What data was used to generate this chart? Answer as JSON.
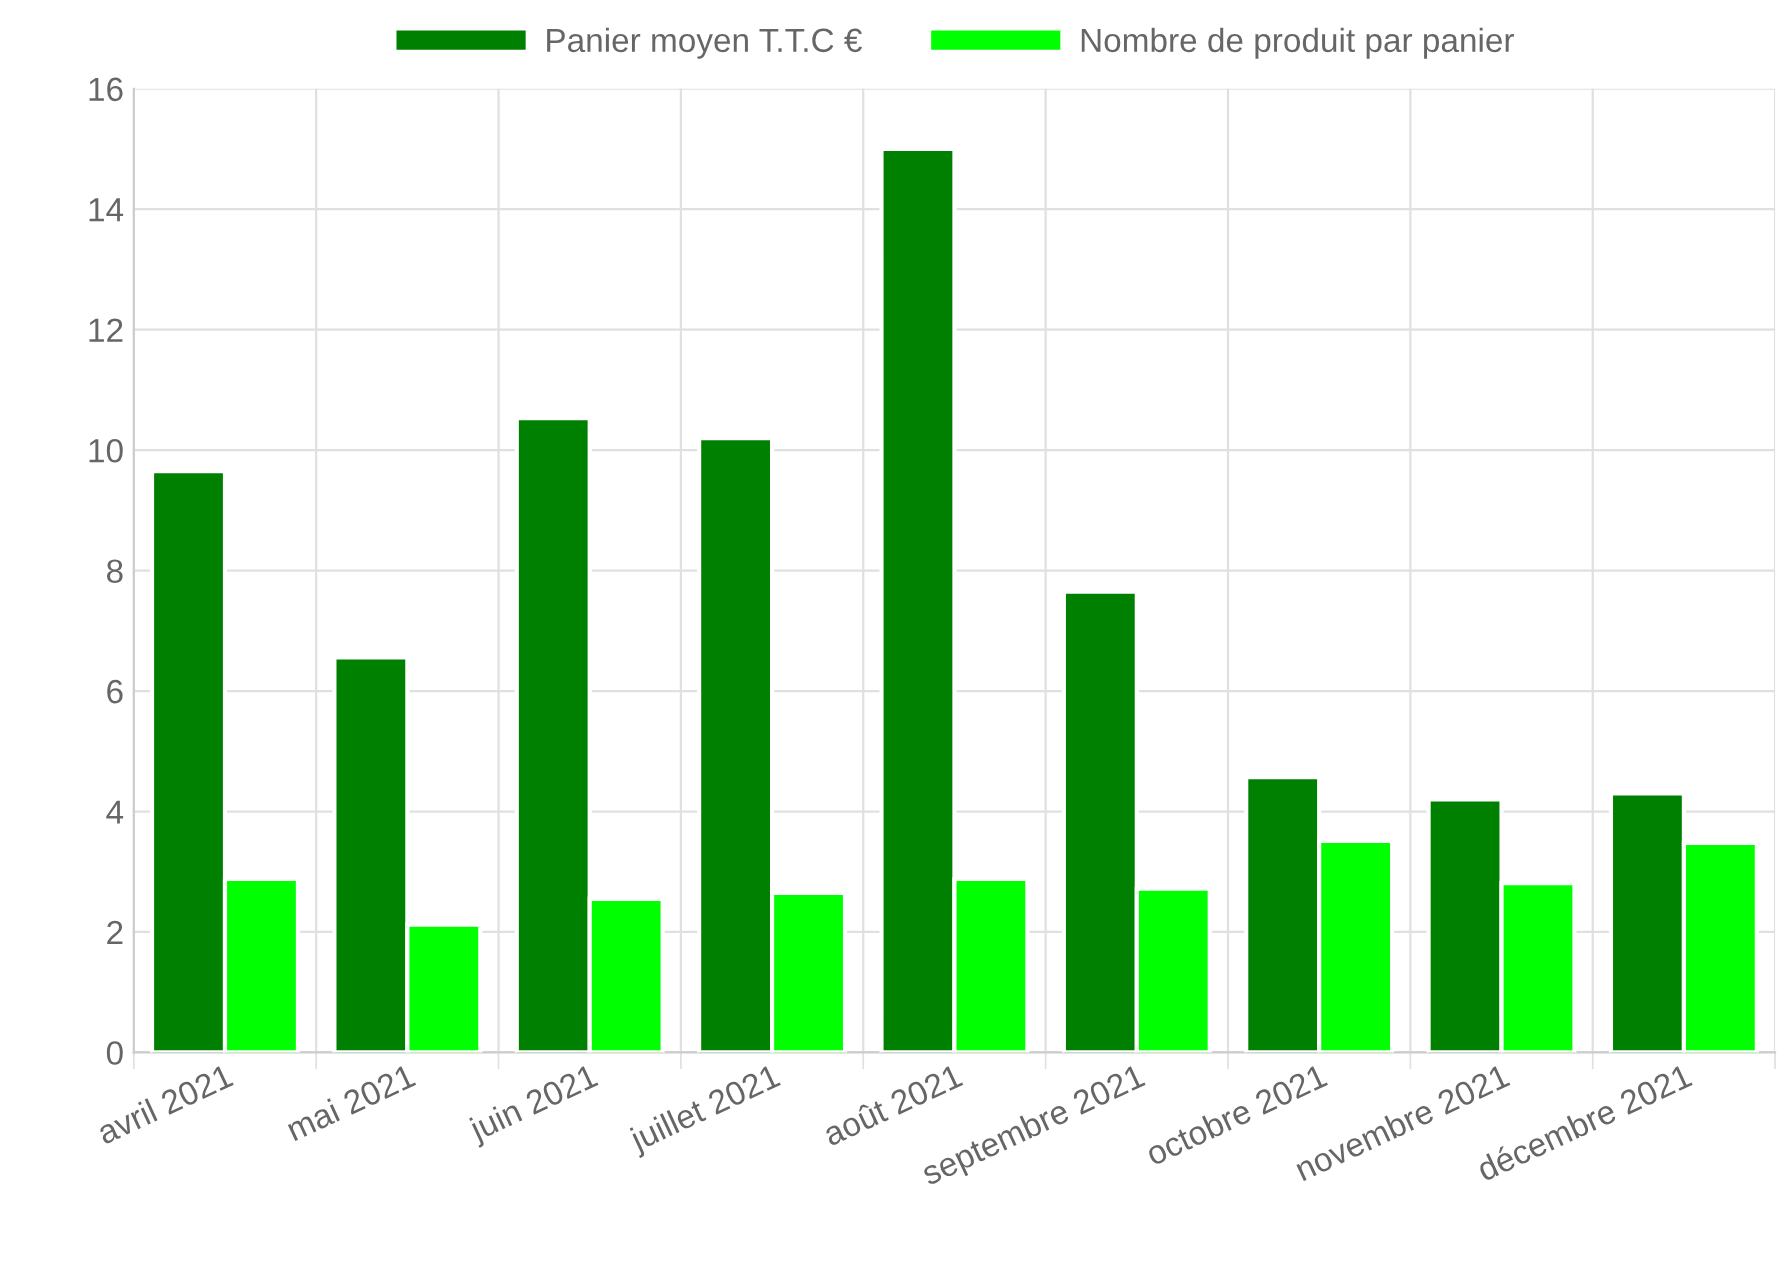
{
  "chart_data": {
    "type": "bar",
    "categories": [
      "avril 2021",
      "mai 2021",
      "juin 2021",
      "juillet 2021",
      "août 2021",
      "septembre 2021",
      "octobre 2021",
      "novembre 2021",
      "décembre 2021"
    ],
    "series": [
      {
        "name": "Panier moyen T.T.C €",
        "color": "#008000",
        "values": [
          9.65,
          6.56,
          10.53,
          10.2,
          15.0,
          7.65,
          4.57,
          4.2,
          4.3
        ]
      },
      {
        "name": "Nombre de produit par panier",
        "color": "#00ff00",
        "values": [
          2.88,
          2.12,
          2.55,
          2.65,
          2.88,
          2.72,
          3.51,
          2.81,
          3.48
        ]
      }
    ],
    "ylim": [
      0,
      16
    ],
    "yticks": [
      0,
      2,
      4,
      6,
      8,
      10,
      12,
      14,
      16
    ],
    "grid": true,
    "legend": "top"
  }
}
